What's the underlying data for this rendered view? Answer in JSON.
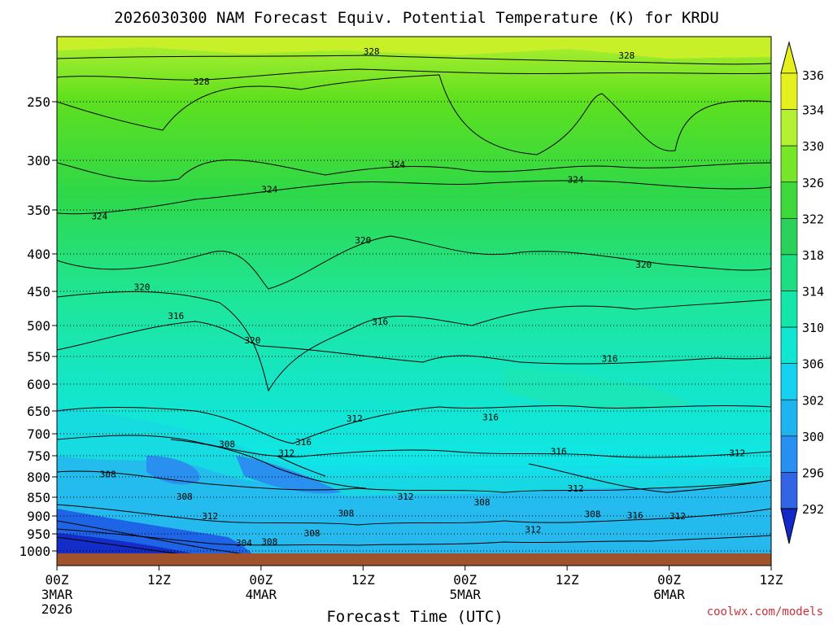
{
  "chart_data": {
    "type": "heatmap",
    "title": "2026030300 NAM Forecast Equiv. Potential Temperature (K) for KRDU",
    "xlabel": "Forecast Time (UTC)",
    "ylabel": "",
    "xlim": [
      0,
      84
    ],
    "ylim": [
      1000,
      200
    ],
    "x_ticks": [
      {
        "x": 0,
        "line1": "00Z",
        "line2": "3MAR",
        "line3": "2026"
      },
      {
        "x": 12,
        "line1": "12Z",
        "line2": "",
        "line3": ""
      },
      {
        "x": 24,
        "line1": "00Z",
        "line2": "4MAR",
        "line3": ""
      },
      {
        "x": 36,
        "line1": "12Z",
        "line2": "",
        "line3": ""
      },
      {
        "x": 48,
        "line1": "00Z",
        "line2": "5MAR",
        "line3": ""
      },
      {
        "x": 60,
        "line1": "12Z",
        "line2": "",
        "line3": ""
      },
      {
        "x": 72,
        "line1": "00Z",
        "line2": "6MAR",
        "line3": ""
      },
      {
        "x": 84,
        "line1": "12Z",
        "line2": "",
        "line3": ""
      }
    ],
    "y_ticks": [
      "250",
      "300",
      "350",
      "400",
      "450",
      "500",
      "550",
      "600",
      "650",
      "700",
      "750",
      "800",
      "850",
      "900",
      "950",
      "1000"
    ],
    "colorbar_ticks": [
      "292",
      "296",
      "300",
      "302",
      "306",
      "310",
      "314",
      "318",
      "322",
      "326",
      "330",
      "334",
      "336"
    ],
    "contour_labels": [
      {
        "text": "328",
        "x": 37,
        "p": 212
      },
      {
        "text": "328",
        "x": 67,
        "p": 215
      },
      {
        "text": "328",
        "x": 17,
        "p": 235
      },
      {
        "text": "324",
        "x": 40,
        "p": 305
      },
      {
        "text": "324",
        "x": 61,
        "p": 320
      },
      {
        "text": "324",
        "x": 25,
        "p": 330
      },
      {
        "text": "324",
        "x": 5,
        "p": 358
      },
      {
        "text": "320",
        "x": 36,
        "p": 385
      },
      {
        "text": "320",
        "x": 69,
        "p": 415
      },
      {
        "text": "320",
        "x": 10,
        "p": 445
      },
      {
        "text": "320",
        "x": 23,
        "p": 525
      },
      {
        "text": "316",
        "x": 14,
        "p": 487
      },
      {
        "text": "316",
        "x": 38,
        "p": 495
      },
      {
        "text": "316",
        "x": 65,
        "p": 555
      },
      {
        "text": "316",
        "x": 51,
        "p": 665
      },
      {
        "text": "312",
        "x": 35,
        "p": 668
      },
      {
        "text": "316",
        "x": 29,
        "p": 720
      },
      {
        "text": "308",
        "x": 20,
        "p": 725
      },
      {
        "text": "312",
        "x": 27,
        "p": 745
      },
      {
        "text": "316",
        "x": 59,
        "p": 742
      },
      {
        "text": "312",
        "x": 80,
        "p": 745
      },
      {
        "text": "308",
        "x": 6,
        "p": 795
      },
      {
        "text": "312",
        "x": 61,
        "p": 830
      },
      {
        "text": "308",
        "x": 15,
        "p": 850
      },
      {
        "text": "312",
        "x": 41,
        "p": 850
      },
      {
        "text": "308",
        "x": 50,
        "p": 865
      },
      {
        "text": "308",
        "x": 34,
        "p": 895
      },
      {
        "text": "308",
        "x": 63,
        "p": 897
      },
      {
        "text": "316",
        "x": 68,
        "p": 900
      },
      {
        "text": "312",
        "x": 73,
        "p": 902
      },
      {
        "text": "312",
        "x": 18,
        "p": 902
      },
      {
        "text": "312",
        "x": 56,
        "p": 940
      },
      {
        "text": "308",
        "x": 30,
        "p": 950
      },
      {
        "text": "304",
        "x": 22,
        "p": 978
      },
      {
        "text": "308",
        "x": 25,
        "p": 975
      }
    ]
  },
  "credit": "coolwx.com/models",
  "colors": {
    "ground": "#a0522d",
    "background": "#ffffff",
    "credit": "#c8323c"
  }
}
